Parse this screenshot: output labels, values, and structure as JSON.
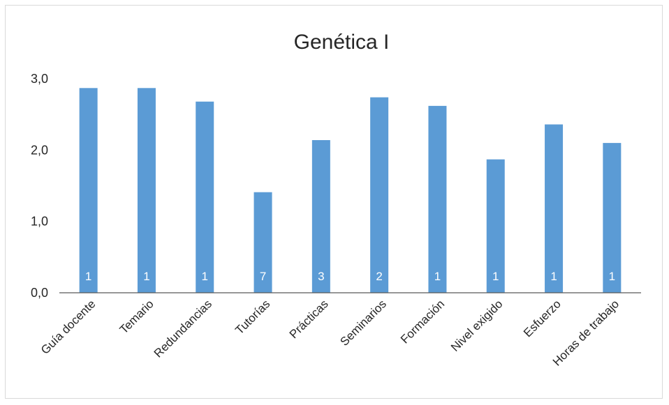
{
  "chart_data": {
    "type": "bar",
    "title": "Genética I",
    "categories": [
      "Guía docente",
      "Temario",
      "Redundancias",
      "Tutorías",
      "Prácticas",
      "Seminarios",
      "Formación",
      "Nivel exigido",
      "Esfuerzo",
      "Horas de trabajo"
    ],
    "values": [
      2.87,
      2.87,
      2.68,
      1.41,
      2.14,
      2.74,
      2.62,
      1.87,
      2.36,
      2.1
    ],
    "data_labels": [
      "1",
      "1",
      "1",
      "7",
      "3",
      "2",
      "1",
      "1",
      "1",
      "1"
    ],
    "ylim": [
      0,
      3
    ],
    "yticks": [
      "0,0",
      "1,0",
      "2,0",
      "3,0"
    ],
    "ytick_values": [
      0,
      1,
      2,
      3
    ],
    "grid": false,
    "legend": "none",
    "bar_color": "#5b9bd5"
  }
}
